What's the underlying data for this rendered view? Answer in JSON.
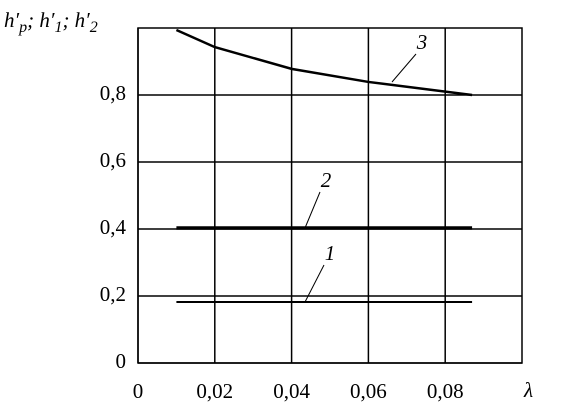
{
  "chart_data": {
    "type": "line",
    "y_label": [
      "h′",
      "p",
      "; h′",
      "1",
      "; h′",
      "2"
    ],
    "x_label": "λ",
    "xlim": [
      0,
      0.1
    ],
    "ylim": [
      0,
      1
    ],
    "xticks": [
      0,
      {
        "value": 0.02,
        "label": "0,02"
      },
      {
        "value": 0.04,
        "label": "0,04"
      },
      {
        "value": 0.06,
        "label": "0,06"
      },
      {
        "value": 0.08,
        "label": "0,08"
      }
    ],
    "yticks": [
      0,
      {
        "value": 0.2,
        "label": "0,2"
      },
      {
        "value": 0.4,
        "label": "0,4"
      },
      {
        "value": 0.6,
        "label": "0,6"
      },
      {
        "value": 0.8,
        "label": "0,8"
      }
    ],
    "grid": true,
    "series": [
      {
        "name": "1",
        "color": "#000000",
        "x": [
          0.01,
          0.087
        ],
        "values": [
          0.182,
          0.182
        ]
      },
      {
        "name": "2",
        "color": "#000000",
        "x": [
          0.01,
          0.087
        ],
        "values": [
          0.403,
          0.403
        ]
      },
      {
        "name": "3",
        "color": "#000000",
        "x": [
          0.01,
          0.02,
          0.04,
          0.06,
          0.087
        ],
        "values": [
          0.994,
          0.943,
          0.878,
          0.839,
          0.8
        ]
      }
    ]
  }
}
